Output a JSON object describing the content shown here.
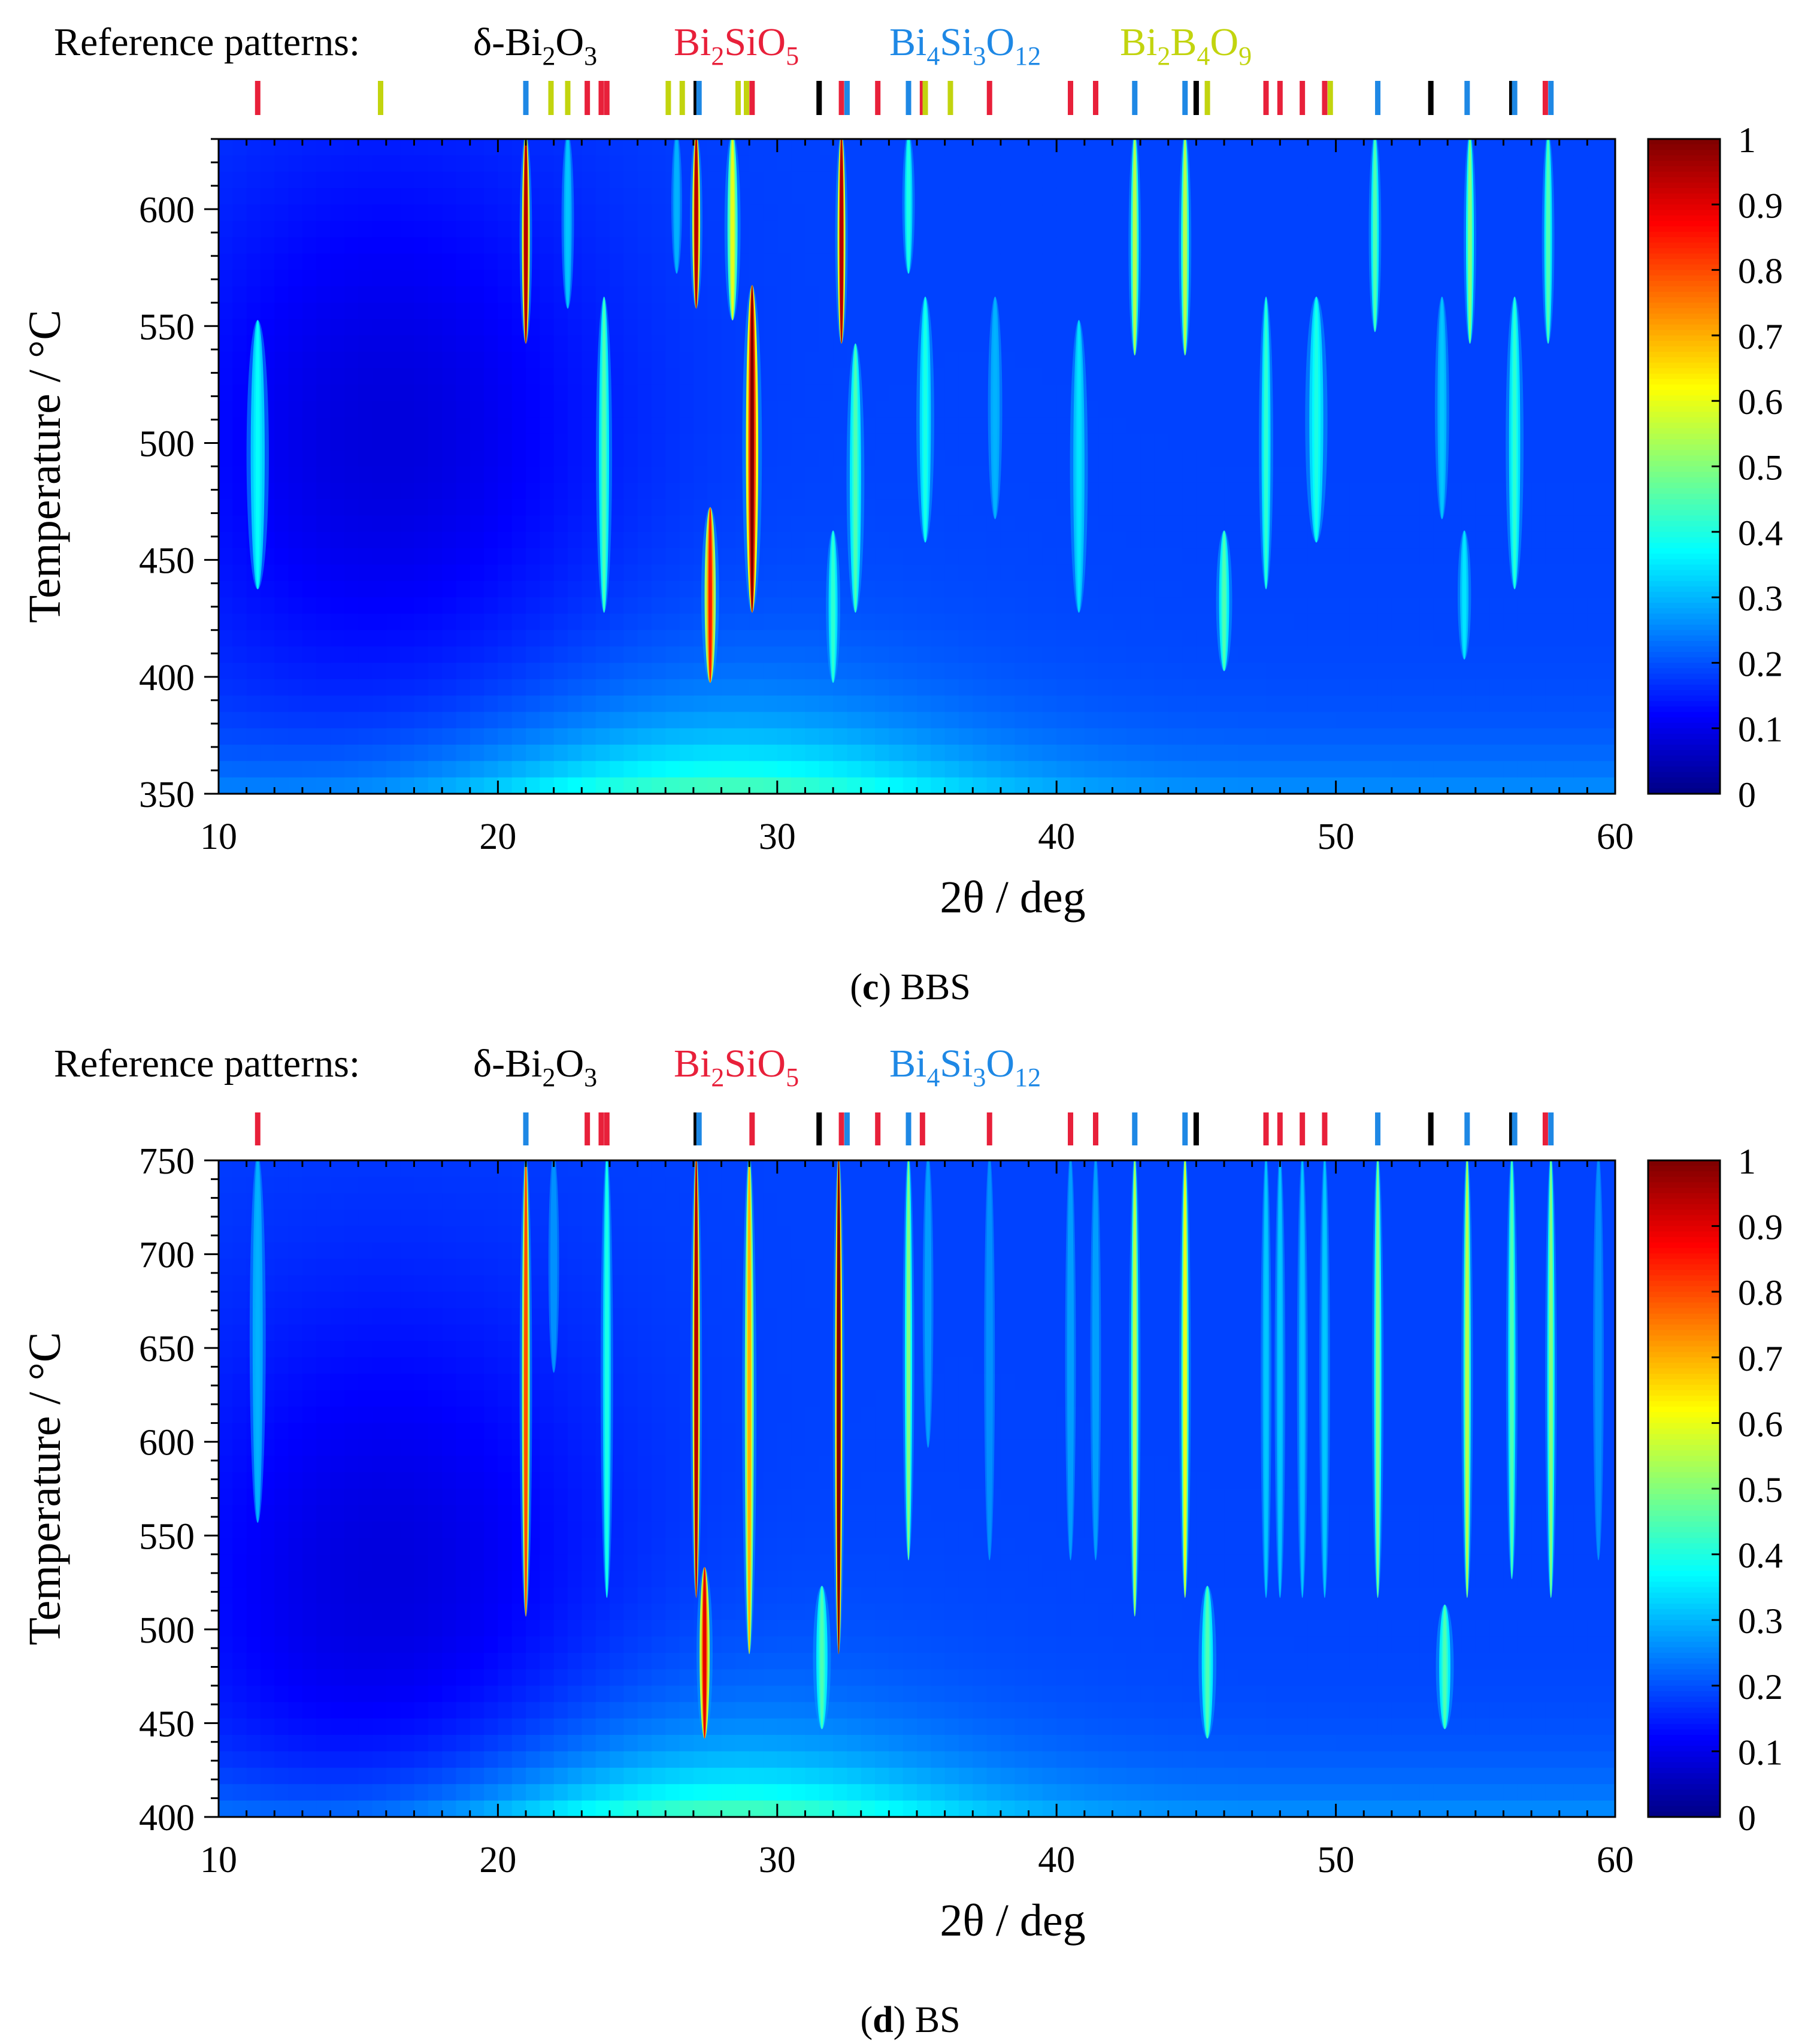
{
  "colors": {
    "delta_bi2o3": "#000000",
    "bi2sio5": "#e8203a",
    "bi4si3o12": "#1e88e5",
    "bi2b4o9": "#c2d40e",
    "axis": "#000000"
  },
  "colorbar": {
    "ticks": [
      "0",
      "0.1",
      "0.2",
      "0.3",
      "0.4",
      "0.5",
      "0.6",
      "0.7",
      "0.8",
      "0.9",
      "1"
    ],
    "range": [
      0,
      1
    ],
    "colormap": "jet"
  },
  "chart_data": [
    {
      "type": "heatmap",
      "panel_label": "c",
      "caption": "BBS",
      "reference_title": "Reference patterns:",
      "phases": [
        {
          "key": "delta_bi2o3",
          "prefix": "δ-",
          "parts": [
            [
              "Bi",
              "2"
            ],
            [
              "O",
              "3"
            ]
          ],
          "positions": [
            27.1,
            31.5,
            45.0,
            53.4,
            56.3
          ]
        },
        {
          "key": "bi2sio5",
          "prefix": "",
          "parts": [
            [
              "Bi",
              "2"
            ],
            [
              "Si",
              ""
            ],
            [
              "O",
              "5"
            ]
          ],
          "positions": [
            11.4,
            23.2,
            23.7,
            23.9,
            29.1,
            32.3,
            33.6,
            35.2,
            37.6,
            40.5,
            41.4,
            47.5,
            48.0,
            48.8,
            49.6,
            57.5
          ]
        },
        {
          "key": "bi4si3o12",
          "prefix": "",
          "parts": [
            [
              "Bi",
              "4"
            ],
            [
              "Si",
              "3"
            ],
            [
              "O",
              "12"
            ]
          ],
          "positions": [
            21.0,
            27.2,
            32.5,
            34.7,
            42.8,
            44.6,
            51.5,
            54.7,
            56.4,
            57.7
          ]
        },
        {
          "key": "bi2b4o9",
          "prefix": "",
          "parts": [
            [
              "Bi",
              "2"
            ],
            [
              "B",
              "4"
            ],
            [
              "O",
              "9"
            ]
          ],
          "positions": [
            15.8,
            21.9,
            22.5,
            26.1,
            26.6,
            28.6,
            28.9,
            35.3,
            36.2,
            45.4,
            49.8
          ]
        }
      ],
      "xlabel": "2θ / deg",
      "ylabel": "Temperature / °C",
      "xlim": [
        10,
        60
      ],
      "ylim": [
        350,
        630
      ],
      "xticks": [
        "10",
        "20",
        "30",
        "40",
        "50",
        "60"
      ],
      "yticks": [
        "350",
        "400",
        "450",
        "500",
        "550",
        "600"
      ],
      "z_range": [
        0,
        1
      ],
      "peaks": [
        {
          "x": 11.4,
          "t0": 440,
          "t1": 550,
          "amp": 0.38,
          "w": 0.25
        },
        {
          "x": 21.0,
          "t0": 545,
          "t1": 630,
          "amp": 0.95,
          "w": 0.14
        },
        {
          "x": 22.5,
          "t0": 560,
          "t1": 630,
          "amp": 0.32,
          "w": 0.14
        },
        {
          "x": 23.8,
          "t0": 430,
          "t1": 560,
          "amp": 0.45,
          "w": 0.18
        },
        {
          "x": 26.4,
          "t0": 575,
          "t1": 630,
          "amp": 0.3,
          "w": 0.12
        },
        {
          "x": 27.1,
          "t0": 560,
          "t1": 630,
          "amp": 0.95,
          "w": 0.14
        },
        {
          "x": 27.6,
          "t0": 400,
          "t1": 470,
          "amp": 0.85,
          "w": 0.2
        },
        {
          "x": 28.4,
          "t0": 555,
          "t1": 630,
          "amp": 0.6,
          "w": 0.18
        },
        {
          "x": 29.1,
          "t0": 430,
          "t1": 565,
          "amp": 1.0,
          "w": 0.22
        },
        {
          "x": 32.0,
          "t0": 400,
          "t1": 460,
          "amp": 0.42,
          "w": 0.16
        },
        {
          "x": 32.3,
          "t0": 545,
          "t1": 630,
          "amp": 0.95,
          "w": 0.14
        },
        {
          "x": 32.8,
          "t0": 430,
          "t1": 540,
          "amp": 0.45,
          "w": 0.2
        },
        {
          "x": 34.7,
          "t0": 575,
          "t1": 630,
          "amp": 0.4,
          "w": 0.14
        },
        {
          "x": 35.3,
          "t0": 460,
          "t1": 560,
          "amp": 0.4,
          "w": 0.2
        },
        {
          "x": 37.8,
          "t0": 470,
          "t1": 560,
          "amp": 0.3,
          "w": 0.16
        },
        {
          "x": 40.8,
          "t0": 430,
          "t1": 550,
          "amp": 0.35,
          "w": 0.2
        },
        {
          "x": 42.8,
          "t0": 540,
          "t1": 630,
          "amp": 0.55,
          "w": 0.14
        },
        {
          "x": 44.6,
          "t0": 540,
          "t1": 630,
          "amp": 0.55,
          "w": 0.14
        },
        {
          "x": 46.0,
          "t0": 405,
          "t1": 460,
          "amp": 0.45,
          "w": 0.18
        },
        {
          "x": 47.5,
          "t0": 440,
          "t1": 560,
          "amp": 0.42,
          "w": 0.16
        },
        {
          "x": 49.3,
          "t0": 460,
          "t1": 560,
          "amp": 0.4,
          "w": 0.25
        },
        {
          "x": 51.4,
          "t0": 550,
          "t1": 630,
          "amp": 0.45,
          "w": 0.14
        },
        {
          "x": 53.8,
          "t0": 470,
          "t1": 560,
          "amp": 0.32,
          "w": 0.16
        },
        {
          "x": 54.6,
          "t0": 410,
          "t1": 460,
          "amp": 0.35,
          "w": 0.15
        },
        {
          "x": 54.8,
          "t0": 545,
          "t1": 630,
          "amp": 0.5,
          "w": 0.14
        },
        {
          "x": 56.4,
          "t0": 440,
          "t1": 560,
          "amp": 0.42,
          "w": 0.2
        },
        {
          "x": 57.6,
          "t0": 545,
          "t1": 630,
          "amp": 0.45,
          "w": 0.14
        }
      ]
    },
    {
      "type": "heatmap",
      "panel_label": "d",
      "caption": "BS",
      "reference_title": "Reference patterns:",
      "phases": [
        {
          "key": "delta_bi2o3",
          "prefix": "δ-",
          "parts": [
            [
              "Bi",
              "2"
            ],
            [
              "O",
              "3"
            ]
          ],
          "positions": [
            27.1,
            31.5,
            45.0,
            53.4,
            56.3
          ]
        },
        {
          "key": "bi2sio5",
          "prefix": "",
          "parts": [
            [
              "Bi",
              "2"
            ],
            [
              "Si",
              ""
            ],
            [
              "O",
              "5"
            ]
          ],
          "positions": [
            11.4,
            23.2,
            23.7,
            23.9,
            29.1,
            32.3,
            33.6,
            35.2,
            37.6,
            40.5,
            41.4,
            47.5,
            48.0,
            48.8,
            49.6,
            57.5
          ]
        },
        {
          "key": "bi4si3o12",
          "prefix": "",
          "parts": [
            [
              "Bi",
              "4"
            ],
            [
              "Si",
              "3"
            ],
            [
              "O",
              "12"
            ]
          ],
          "positions": [
            21.0,
            27.2,
            32.5,
            34.7,
            42.8,
            44.6,
            51.5,
            54.7,
            56.4,
            57.7
          ]
        }
      ],
      "xlabel": "2θ / deg",
      "ylabel": "Temperature / °C",
      "xlim": [
        10,
        60
      ],
      "ylim": [
        400,
        750
      ],
      "xticks": [
        "10",
        "20",
        "30",
        "40",
        "50",
        "60"
      ],
      "yticks": [
        "400",
        "450",
        "500",
        "550",
        "600",
        "650",
        "700",
        "750"
      ],
      "z_range": [
        0,
        1
      ],
      "peaks": [
        {
          "x": 11.4,
          "t0": 560,
          "t1": 750,
          "amp": 0.3,
          "w": 0.18
        },
        {
          "x": 21.0,
          "t0": 510,
          "t1": 750,
          "amp": 0.8,
          "w": 0.14
        },
        {
          "x": 22.0,
          "t0": 640,
          "t1": 750,
          "amp": 0.25,
          "w": 0.12
        },
        {
          "x": 23.9,
          "t0": 520,
          "t1": 750,
          "amp": 0.4,
          "w": 0.14
        },
        {
          "x": 27.1,
          "t0": 520,
          "t1": 750,
          "amp": 0.95,
          "w": 0.13
        },
        {
          "x": 27.4,
          "t0": 445,
          "t1": 530,
          "amp": 0.9,
          "w": 0.18
        },
        {
          "x": 29.0,
          "t0": 490,
          "t1": 750,
          "amp": 0.7,
          "w": 0.16
        },
        {
          "x": 31.6,
          "t0": 450,
          "t1": 520,
          "amp": 0.45,
          "w": 0.2
        },
        {
          "x": 32.2,
          "t0": 490,
          "t1": 750,
          "amp": 1.0,
          "w": 0.13
        },
        {
          "x": 34.7,
          "t0": 540,
          "t1": 750,
          "amp": 0.5,
          "w": 0.13
        },
        {
          "x": 35.4,
          "t0": 600,
          "t1": 750,
          "amp": 0.28,
          "w": 0.12
        },
        {
          "x": 37.6,
          "t0": 540,
          "t1": 750,
          "amp": 0.25,
          "w": 0.12
        },
        {
          "x": 40.5,
          "t0": 540,
          "t1": 750,
          "amp": 0.28,
          "w": 0.12
        },
        {
          "x": 41.4,
          "t0": 540,
          "t1": 750,
          "amp": 0.28,
          "w": 0.12
        },
        {
          "x": 42.8,
          "t0": 510,
          "t1": 750,
          "amp": 0.55,
          "w": 0.13
        },
        {
          "x": 44.6,
          "t0": 520,
          "t1": 750,
          "amp": 0.6,
          "w": 0.13
        },
        {
          "x": 45.4,
          "t0": 445,
          "t1": 520,
          "amp": 0.45,
          "w": 0.2
        },
        {
          "x": 47.5,
          "t0": 520,
          "t1": 750,
          "amp": 0.32,
          "w": 0.12
        },
        {
          "x": 48.0,
          "t0": 520,
          "t1": 750,
          "amp": 0.32,
          "w": 0.12
        },
        {
          "x": 48.8,
          "t0": 520,
          "t1": 750,
          "amp": 0.32,
          "w": 0.12
        },
        {
          "x": 49.6,
          "t0": 520,
          "t1": 750,
          "amp": 0.32,
          "w": 0.12
        },
        {
          "x": 51.5,
          "t0": 520,
          "t1": 750,
          "amp": 0.5,
          "w": 0.13
        },
        {
          "x": 53.9,
          "t0": 450,
          "t1": 510,
          "amp": 0.45,
          "w": 0.2
        },
        {
          "x": 54.7,
          "t0": 520,
          "t1": 750,
          "amp": 0.55,
          "w": 0.13
        },
        {
          "x": 56.3,
          "t0": 530,
          "t1": 750,
          "amp": 0.45,
          "w": 0.13
        },
        {
          "x": 57.7,
          "t0": 520,
          "t1": 750,
          "amp": 0.5,
          "w": 0.13
        },
        {
          "x": 59.4,
          "t0": 540,
          "t1": 750,
          "amp": 0.25,
          "w": 0.12
        }
      ]
    }
  ]
}
